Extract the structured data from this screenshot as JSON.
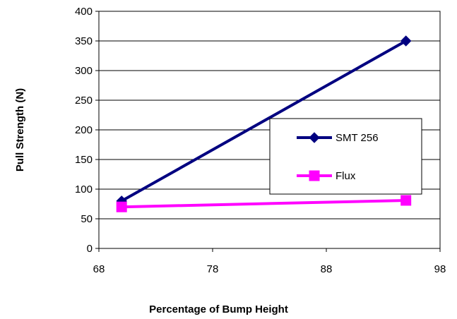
{
  "chart_data": {
    "type": "line",
    "title": "",
    "xlabel": "Percentage of Bump Height",
    "ylabel": "Pull Strength (N)",
    "xlim": [
      68,
      98
    ],
    "ylim": [
      0,
      400
    ],
    "xticks": [
      68,
      78,
      88,
      98
    ],
    "yticks": [
      0,
      50,
      100,
      150,
      200,
      250,
      300,
      350,
      400
    ],
    "grid": "horizontal",
    "legend_position": "right",
    "series": [
      {
        "name": "SMT 256",
        "x": [
          70,
          95
        ],
        "y": [
          80,
          350
        ],
        "color": "#000080",
        "marker": "diamond"
      },
      {
        "name": "Flux",
        "x": [
          70,
          95
        ],
        "y": [
          70,
          81
        ],
        "color": "#FF00FF",
        "marker": "square"
      }
    ]
  }
}
